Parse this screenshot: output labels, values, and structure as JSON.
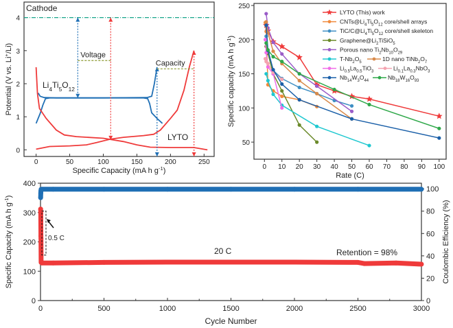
{
  "chart_data": [
    {
      "type": "line",
      "xlabel": "Specific Capacity (mA h g-1)",
      "ylabel": "Potential (V vs. Li+/Li)",
      "xlim": [
        -18,
        265
      ],
      "ylim": [
        -0.2,
        4.47
      ],
      "xticks": [
        0,
        50,
        100,
        150,
        200,
        250
      ],
      "yticks": [
        0,
        1,
        2,
        3,
        4
      ],
      "colors": {
        "lto": "#1f6fb5",
        "lyto": "#ef3a3a",
        "cathode": "#17a58a",
        "annot": "#8c9a32"
      },
      "annotations": {
        "cathode": "Cathode",
        "voltage": "Voltage",
        "capacity": "Capacity",
        "lto": "Li4Ti5O12",
        "lyto": "LYTO"
      },
      "cathode_potential": 4.0,
      "series": [
        {
          "name": "Li4Ti5O12",
          "color": "#1f6fb5",
          "x": [
            3,
            6,
            12,
            30,
            100,
            160,
            166,
            169,
            172,
            180,
            188
          ],
          "y": [
            1.72,
            1.62,
            1.58,
            1.57,
            1.57,
            1.57,
            1.55,
            1.4,
            1.12,
            0.95,
            0.8
          ]
        },
        {
          "name": "Li4Ti5O12",
          "color": "#1f6fb5",
          "x": [
            0,
            6,
            10,
            14,
            20,
            100,
            165,
            172,
            176,
            180
          ],
          "y": [
            0.8,
            1.1,
            1.35,
            1.55,
            1.57,
            1.57,
            1.58,
            1.62,
            2.0,
            2.5
          ]
        },
        {
          "name": "LYTO",
          "color": "#ef3a3a",
          "x": [
            0,
            2,
            5,
            15,
            30,
            42,
            60,
            100,
            130,
            150,
            170,
            200,
            235,
            255
          ],
          "y": [
            2.5,
            1.7,
            1.25,
            0.95,
            0.6,
            0.45,
            0.4,
            0.35,
            0.25,
            0.15,
            0.08,
            0.07,
            0.07,
            0.0
          ]
        },
        {
          "name": "LYTO",
          "color": "#ef3a3a",
          "x": [
            0,
            20,
            50,
            75,
            90,
            110,
            130,
            160,
            175,
            185,
            200,
            210,
            220,
            228,
            235
          ],
          "y": [
            0.02,
            0.1,
            0.12,
            0.15,
            0.22,
            0.32,
            0.38,
            0.43,
            0.47,
            0.6,
            0.95,
            1.2,
            1.8,
            2.5,
            3.0
          ]
        }
      ],
      "markers": {
        "voltage_lto": {
          "x": 62,
          "from": 4.0,
          "to": 1.57
        },
        "voltage_lyto": {
          "x": 111,
          "from": 4.0,
          "to": 0.3
        },
        "voltage_bracket": {
          "x1": 62,
          "x2": 111,
          "y": 2.7
        },
        "capacity_lto": {
          "x": 180,
          "from": 2.5,
          "to": -0.2
        },
        "capacity_lyto": {
          "x": 235,
          "from": 3.0,
          "to": -0.2
        },
        "capacity_bracket": {
          "x1": 180,
          "x2": 235,
          "y": 2.45
        }
      }
    },
    {
      "type": "line",
      "xlabel": "Rate (C)",
      "ylabel": "Specific capacity (mA h g-1)",
      "xlim": [
        -6,
        104
      ],
      "ylim": [
        25,
        253
      ],
      "xticks": [
        0,
        10,
        20,
        30,
        40,
        50,
        60,
        70,
        80,
        90,
        100
      ],
      "yticks": [
        50,
        100,
        150,
        200,
        250
      ],
      "legend": "top-right",
      "series": [
        {
          "name": "LYTO (This) work",
          "color": "#ef3a3a",
          "marker": "star",
          "x": [
            1,
            2,
            5,
            10,
            20,
            30,
            40,
            50,
            60,
            100
          ],
          "y": [
            221,
            213,
            197,
            190,
            174,
            134,
            125,
            117,
            113,
            88
          ]
        },
        {
          "name": "CNTs@Li4Ti5O12 core/shell arrays",
          "color": "#f08a3c",
          "marker": "circle",
          "x": [
            0.5,
            1,
            2,
            5,
            10,
            20,
            30
          ],
          "y": [
            225,
            212,
            134,
            125,
            117,
            112,
            102
          ]
        },
        {
          "name": "TiC/C@Li4Ti5O12 core/shell skeleton",
          "color": "#3f8fc4",
          "marker": "circle",
          "x": [
            1,
            2,
            5,
            10,
            20,
            30,
            40,
            50
          ],
          "y": [
            205,
            185,
            155,
            143,
            130,
            121,
            111,
            103
          ]
        },
        {
          "name": "Graphene@Li2TiSiO5",
          "color": "#6b8a2a",
          "marker": "circle",
          "x": [
            1,
            2,
            5,
            10,
            20,
            30
          ],
          "y": [
            190,
            180,
            150,
            125,
            75,
            50
          ]
        },
        {
          "name": "Porous nano Ti2Nb10O29",
          "color": "#9a5cc8",
          "marker": "circle",
          "x": [
            1,
            2,
            5,
            10,
            20,
            30,
            50
          ],
          "y": [
            238,
            217,
            196,
            179,
            150,
            132,
            95
          ]
        },
        {
          "name": "T-Nb2O5",
          "color": "#1fc8d0",
          "marker": "circle",
          "x": [
            1,
            2,
            5,
            10,
            30,
            60
          ],
          "y": [
            150,
            140,
            120,
            104,
            73,
            45
          ]
        },
        {
          "name": "1D nano TiNb2O7",
          "color": "#d98a4a",
          "marker": "circle",
          "x": [
            1,
            2,
            5,
            10,
            20,
            30,
            50
          ],
          "y": [
            226,
            210,
            183,
            165,
            140,
            121,
            84
          ]
        },
        {
          "name": "Li0.5La0.5TiO3",
          "color": "#f06ce8",
          "marker": "circle",
          "x": [
            0.5,
            1,
            2,
            5,
            10
          ],
          "y": [
            200,
            181,
            160,
            150,
            100
          ]
        },
        {
          "name": "Li0.1La0.3NbO3",
          "color": "#f4a3b0",
          "marker": "circle",
          "x": [
            0.5,
            1,
            2,
            5,
            10
          ],
          "y": [
            172,
            168,
            165,
            152,
            142
          ]
        },
        {
          "name": "Nb14W3O44",
          "color": "#1a5fa8",
          "marker": "circle",
          "x": [
            1,
            2,
            5,
            10,
            20,
            50,
            100
          ],
          "y": [
            221,
            184,
            156,
            135,
            112,
            84,
            56
          ]
        },
        {
          "name": "Nb18W16O93",
          "color": "#2fa84a",
          "marker": "circle",
          "x": [
            1,
            2,
            5,
            10,
            20,
            40,
            60,
            100
          ],
          "y": [
            195,
            185,
            175,
            168,
            150,
            127,
            105,
            70
          ]
        }
      ]
    },
    {
      "type": "scatter",
      "xlabel": "Cycle Number",
      "ylabel": "Specific Capacity (mA h g-1)",
      "y2label": "Coulombic Efficiency (%)",
      "xlim": [
        0,
        3000
      ],
      "ylim": [
        0,
        400
      ],
      "y2lim": [
        0,
        105
      ],
      "xticks": [
        0,
        500,
        1000,
        1500,
        2000,
        2500,
        3000
      ],
      "yticks": [
        0,
        100,
        200,
        300,
        400
      ],
      "y2ticks": [
        0,
        20,
        40,
        60,
        80,
        100
      ],
      "annotations": {
        "low_rate": "0.5 C",
        "high_rate": "20 C",
        "retention": "Retention = 98%"
      },
      "series": [
        {
          "name": "Specific Capacity",
          "color": "#ef3a3a",
          "axis": "left",
          "x": [
            1,
            2,
            3,
            4,
            5,
            10,
            100,
            500,
            1000,
            1500,
            2000,
            2500,
            2550,
            2800,
            3000
          ],
          "y": [
            312,
            300,
            220,
            212,
            130,
            128,
            128,
            130,
            131,
            131,
            131,
            130,
            126,
            128,
            124
          ]
        },
        {
          "name": "Coulombic Efficiency",
          "color": "#1f6fb5",
          "axis": "right",
          "x": [
            1,
            2,
            3,
            5,
            10,
            100,
            500,
            1000,
            1500,
            2000,
            2500,
            3000
          ],
          "y": [
            92,
            96,
            98,
            99.5,
            99.6,
            99.6,
            99.6,
            99.6,
            99.6,
            99.6,
            99.6,
            99.6
          ]
        }
      ]
    }
  ]
}
